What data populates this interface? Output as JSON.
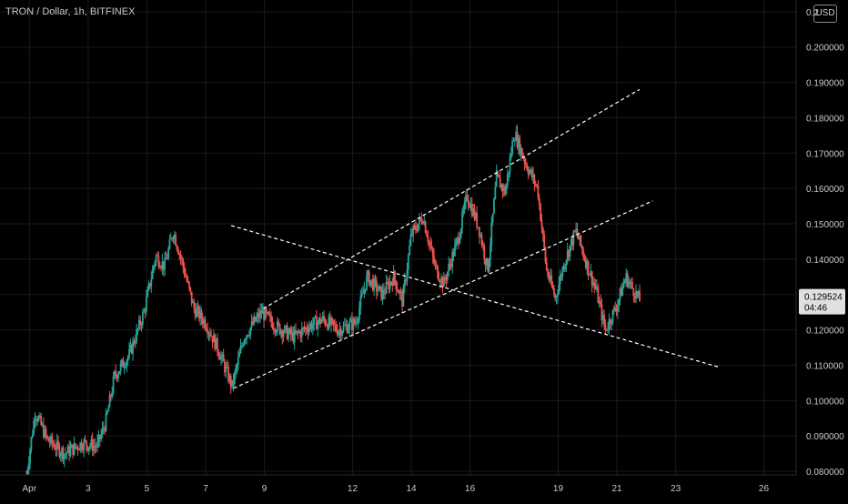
{
  "symbol": {
    "title": "TRON / Dollar, 1h, BITFINEX",
    "currency_button": "USD"
  },
  "colors": {
    "background": "#000000",
    "up": "#26a69a",
    "down": "#ef5350",
    "grid": "#1a1a1a",
    "axis_text": "#c8c8c8",
    "trendline": "#ffffff",
    "price_label_bg": "#e0e0e0"
  },
  "price_label": {
    "price": "0.129524",
    "countdown": "04:46"
  },
  "chart_data": {
    "type": "candlestick",
    "y_axis": {
      "position": "right",
      "ylim": [
        0.079,
        0.2133
      ],
      "ticks": [
        0.08,
        0.09,
        0.1,
        0.11,
        0.12,
        0.13,
        0.14,
        0.15,
        0.16,
        0.17,
        0.18,
        0.19,
        0.2,
        0.21
      ],
      "tick_labels": [
        "0.080000",
        "0.090000",
        "0.100000",
        "0.110000",
        "0.120000",
        "0.130000",
        "0.140000",
        "0.150000",
        "0.160000",
        "0.170000",
        "0.180000",
        "0.190000",
        "0.200000",
        "0.2"
      ]
    },
    "x_axis": {
      "xlim": [
        0,
        27.1
      ],
      "ticks": [
        {
          "x": 1,
          "label": "Apr"
        },
        {
          "x": 3,
          "label": "3"
        },
        {
          "x": 5,
          "label": "5"
        },
        {
          "x": 7,
          "label": "7"
        },
        {
          "x": 9,
          "label": "9"
        },
        {
          "x": 12,
          "label": "12"
        },
        {
          "x": 14,
          "label": "14"
        },
        {
          "x": 16,
          "label": "16"
        },
        {
          "x": 19,
          "label": "19"
        },
        {
          "x": 21,
          "label": "21"
        },
        {
          "x": 23,
          "label": "23"
        },
        {
          "x": 26,
          "label": "26"
        }
      ]
    },
    "price_path": [
      [
        0.9,
        0.079
      ],
      [
        1.2,
        0.097
      ],
      [
        1.6,
        0.089
      ],
      [
        2.2,
        0.085
      ],
      [
        2.8,
        0.088
      ],
      [
        3.3,
        0.087
      ],
      [
        3.6,
        0.094
      ],
      [
        3.9,
        0.107
      ],
      [
        4.4,
        0.113
      ],
      [
        4.9,
        0.125
      ],
      [
        5.3,
        0.141
      ],
      [
        5.6,
        0.138
      ],
      [
        5.9,
        0.148
      ],
      [
        6.2,
        0.139
      ],
      [
        6.6,
        0.126
      ],
      [
        7.0,
        0.122
      ],
      [
        7.4,
        0.115
      ],
      [
        7.9,
        0.104
      ],
      [
        8.3,
        0.118
      ],
      [
        8.9,
        0.125
      ],
      [
        9.4,
        0.121
      ],
      [
        10.0,
        0.118
      ],
      [
        10.5,
        0.121
      ],
      [
        11.0,
        0.123
      ],
      [
        11.5,
        0.12
      ],
      [
        12.1,
        0.122
      ],
      [
        12.5,
        0.135
      ],
      [
        13.0,
        0.13
      ],
      [
        13.4,
        0.135
      ],
      [
        13.7,
        0.128
      ],
      [
        14.0,
        0.147
      ],
      [
        14.4,
        0.152
      ],
      [
        14.8,
        0.138
      ],
      [
        15.1,
        0.133
      ],
      [
        15.6,
        0.146
      ],
      [
        15.9,
        0.158
      ],
      [
        16.3,
        0.149
      ],
      [
        16.6,
        0.137
      ],
      [
        16.9,
        0.163
      ],
      [
        17.2,
        0.159
      ],
      [
        17.5,
        0.176
      ],
      [
        17.9,
        0.167
      ],
      [
        18.3,
        0.16
      ],
      [
        18.6,
        0.137
      ],
      [
        18.9,
        0.129
      ],
      [
        19.2,
        0.139
      ],
      [
        19.6,
        0.148
      ],
      [
        20.0,
        0.138
      ],
      [
        20.3,
        0.131
      ],
      [
        20.6,
        0.12
      ],
      [
        21.0,
        0.127
      ],
      [
        21.3,
        0.135
      ],
      [
        21.8,
        0.128
      ]
    ],
    "trendlines": [
      {
        "name": "channel-upper",
        "points": [
          [
            8.96,
            0.126
          ],
          [
            21.77,
            0.188
          ]
        ]
      },
      {
        "name": "channel-lower",
        "points": [
          [
            7.95,
            0.1035
          ],
          [
            22.22,
            0.1565
          ]
        ]
      },
      {
        "name": "descending-line",
        "points": [
          [
            7.87,
            0.1495
          ],
          [
            24.46,
            0.1095
          ]
        ]
      }
    ]
  }
}
